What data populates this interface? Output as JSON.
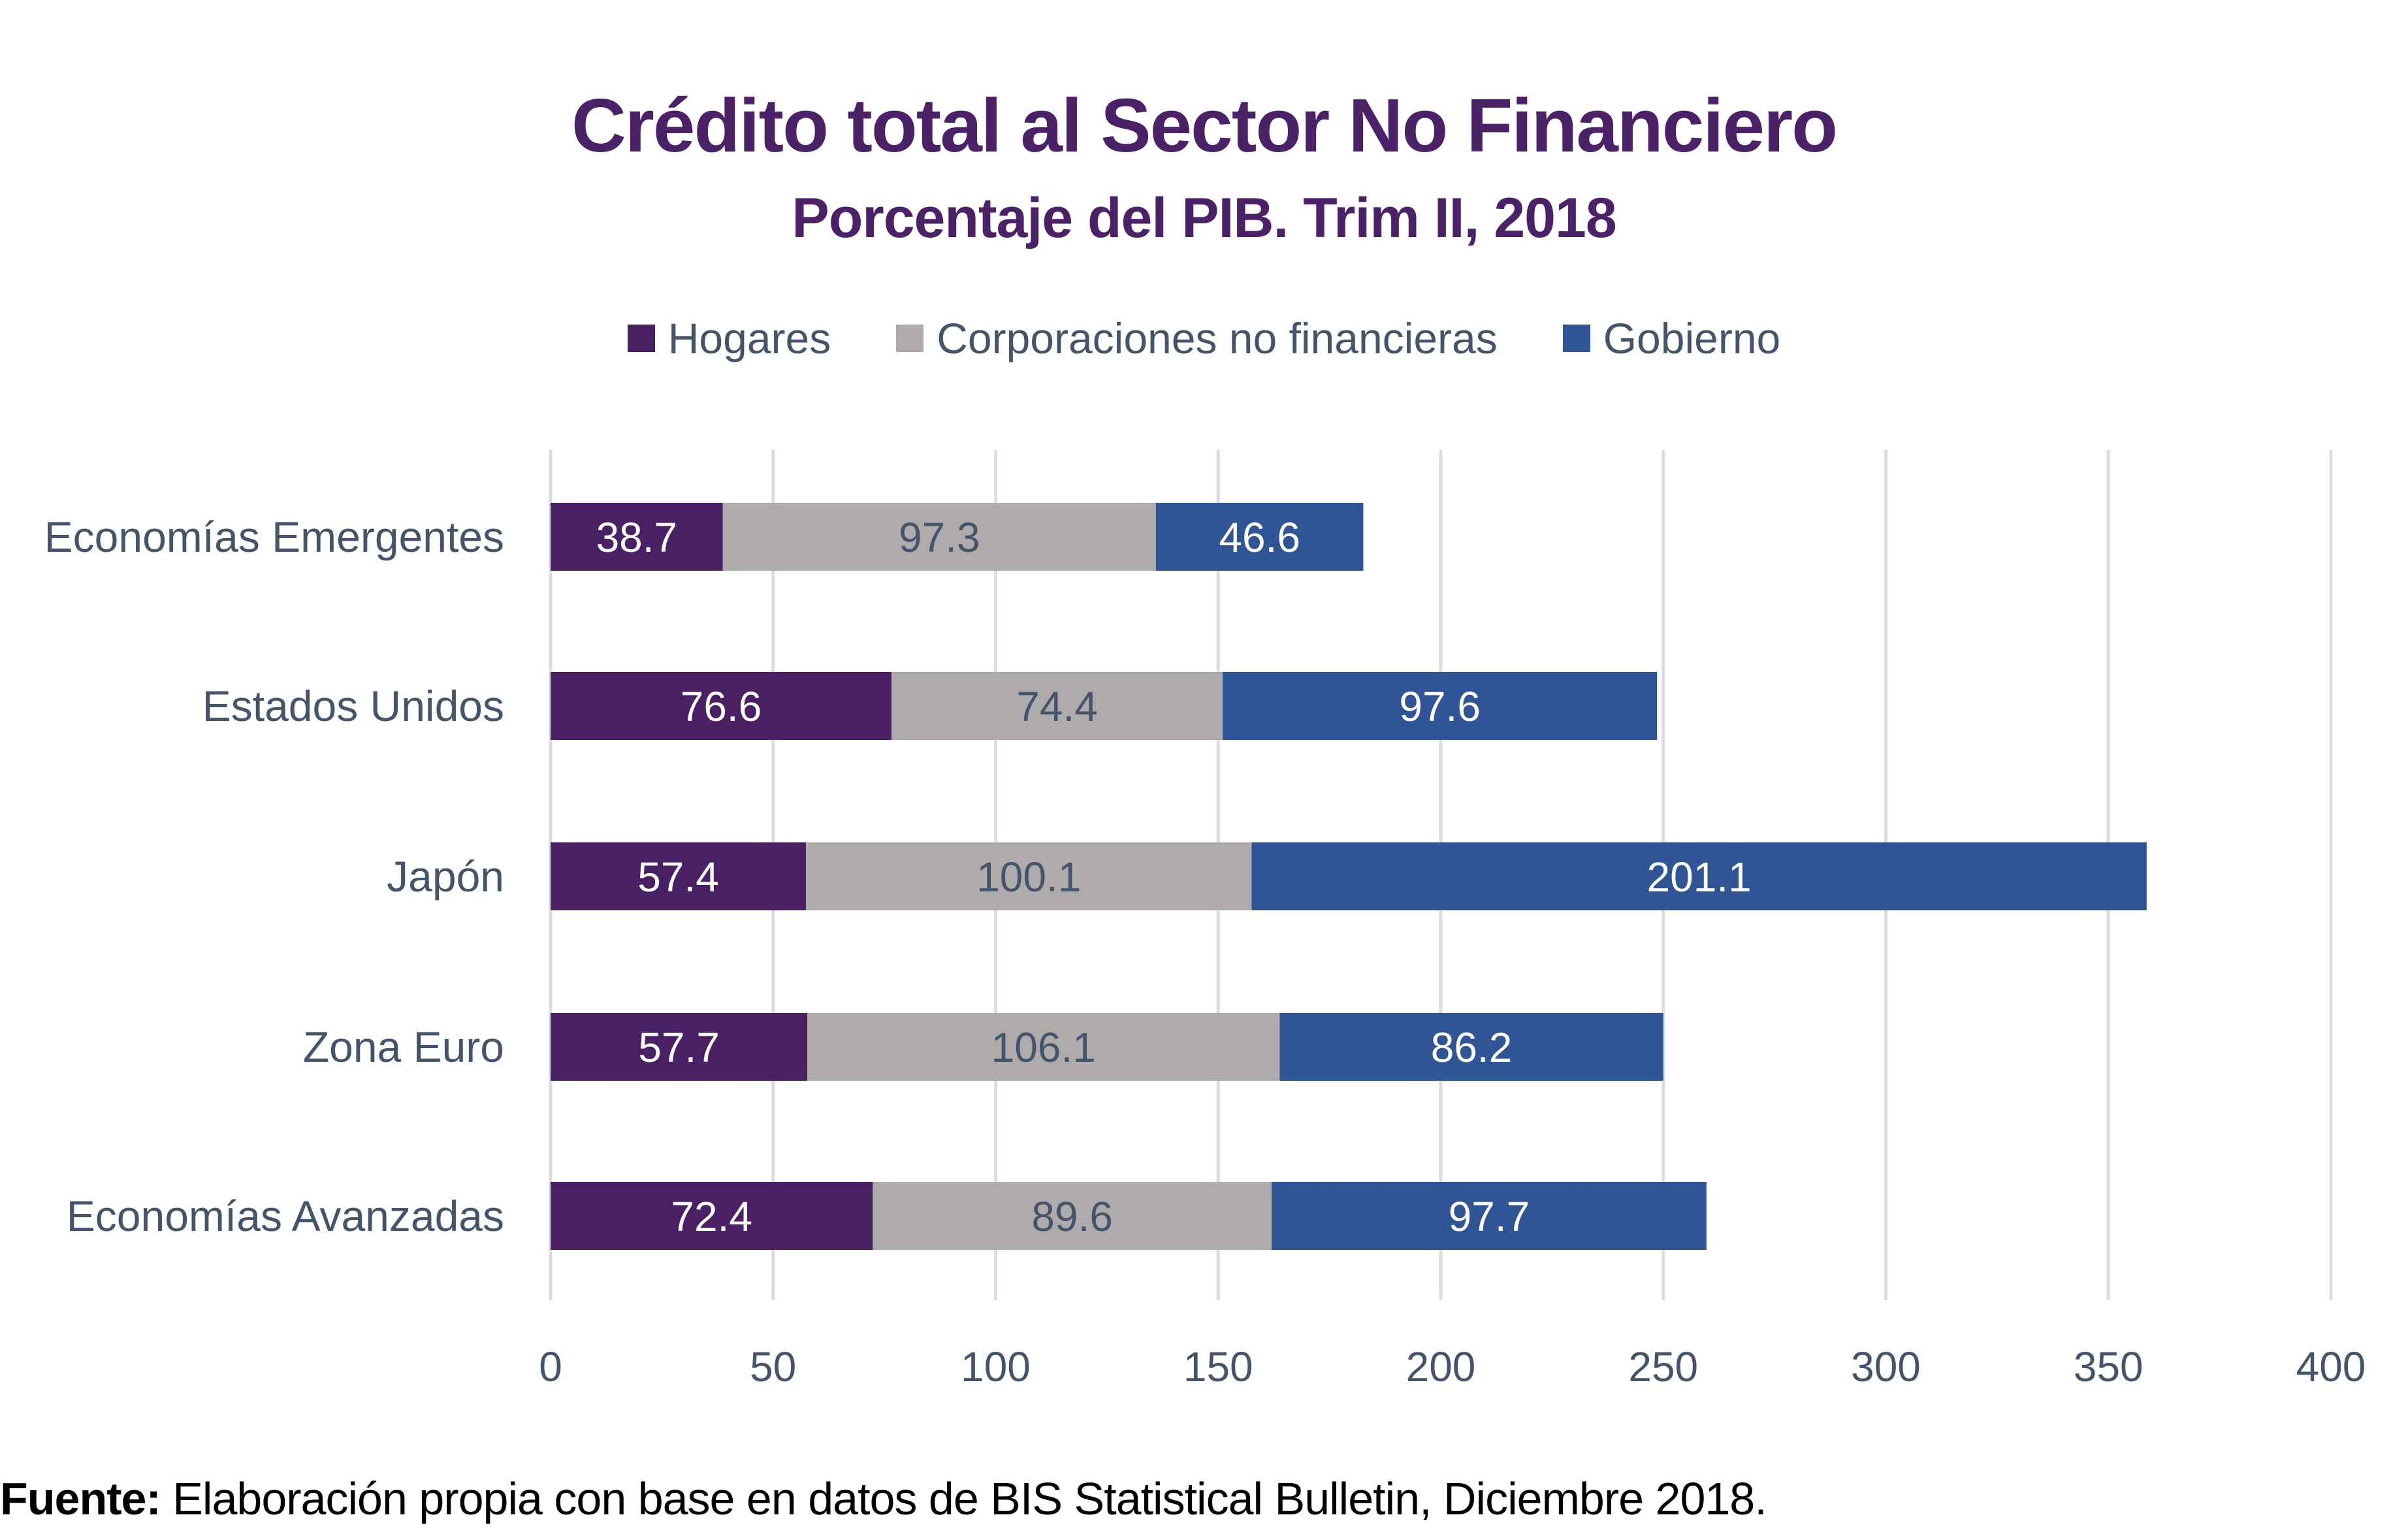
{
  "chart_data": {
    "type": "bar",
    "orientation": "horizontal",
    "stacked": true,
    "title": "Crédito total al Sector No Financiero",
    "subtitle": "Porcentaje del PIB. Trim II, 2018",
    "categories": [
      "Economías Emergentes",
      "Estados Unidos",
      "Japón",
      "Zona Euro",
      "Economías Avanzadas"
    ],
    "series": [
      {
        "name": "Hogares",
        "color": "#4A2064",
        "label_color": "#FFFFFF",
        "values": [
          38.7,
          76.6,
          57.4,
          57.7,
          72.4
        ]
      },
      {
        "name": "Corporaciones no financieras",
        "color": "#AFABAB",
        "label_color": "#44546A",
        "values": [
          97.3,
          74.4,
          100.1,
          106.1,
          89.6
        ]
      },
      {
        "name": "Gobierno",
        "color": "#2F5597",
        "label_color": "#FFFFFF",
        "values": [
          46.6,
          97.6,
          201.1,
          86.2,
          97.7
        ]
      }
    ],
    "data_labels": [
      [
        "38.7",
        "76.6",
        "57.4",
        "57.7",
        "72.4"
      ],
      [
        "97.3",
        "74.4",
        "100.1",
        "106.1",
        "89.6"
      ],
      [
        "46.6",
        "97.6",
        "201.1",
        "86.2",
        "97.7"
      ]
    ],
    "xlim": [
      0,
      400
    ],
    "xticks": [
      0,
      50,
      100,
      150,
      200,
      250,
      300,
      350,
      400
    ],
    "xtick_labels": [
      "0",
      "50",
      "100",
      "150",
      "200",
      "250",
      "300",
      "350",
      "400"
    ],
    "grid": true,
    "legend": "top",
    "xlabel": "",
    "ylabel": ""
  },
  "footnote": {
    "label": "Fuente:",
    "text": " Elaboración propia con base en datos de BIS Statistical Bulletin, Diciembre 2018."
  },
  "colors": {
    "title": "#4B2268",
    "axis_text": "#44546A",
    "gridline": "#D9DDE5"
  }
}
